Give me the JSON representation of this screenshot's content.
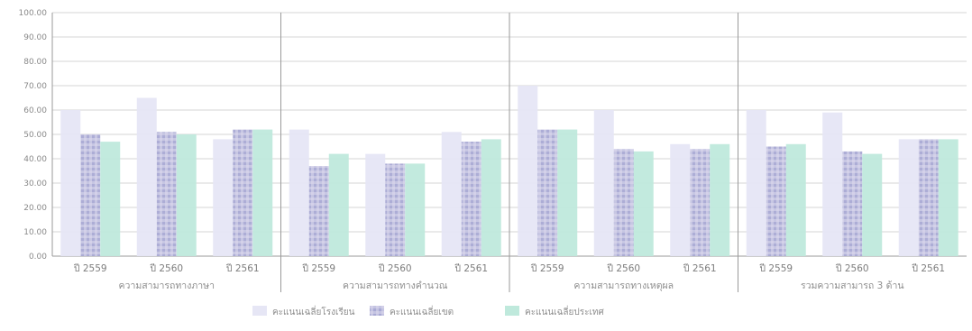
{
  "chart_data": {
    "type": "bar",
    "title": "",
    "xlabel": "",
    "ylabel": "",
    "ylim": [
      0,
      100
    ],
    "grid": true,
    "legend_position": "bottom",
    "yticks": [
      "0.00",
      "10.00",
      "20.00",
      "30.00",
      "40.00",
      "50.00",
      "60.00",
      "70.00",
      "80.00",
      "90.00",
      "100.00"
    ],
    "groups": [
      {
        "label": "ความสามารถทางภาษา",
        "categories": [
          "ปี 2559",
          "ปี 2560",
          "ปี 2561"
        ]
      },
      {
        "label": "ความสามารถทางคำนวณ",
        "categories": [
          "ปี 2559",
          "ปี 2560",
          "ปี 2561"
        ]
      },
      {
        "label": "ความสามารถทางเหตุผล",
        "categories": [
          "ปี 2559",
          "ปี 2560",
          "ปี 2561"
        ]
      },
      {
        "label": "รวมความสามารถ 3 ด้าน",
        "categories": [
          "ปี 2559",
          "ปี 2560",
          "ปี 2561"
        ]
      }
    ],
    "series": [
      {
        "name": "คะแนนเฉลี่ยโรงเรียน",
        "color": "#e6e6f5",
        "pattern": "solid",
        "values": [
          60,
          65,
          48,
          52,
          42,
          51,
          70,
          60,
          46,
          60,
          59,
          48
        ]
      },
      {
        "name": "คะแนนเฉลี่ยเขต",
        "color": "#b8b8dc",
        "pattern": "mosaic",
        "values": [
          50,
          51,
          52,
          37,
          38,
          47,
          52,
          44,
          44,
          45,
          43,
          48
        ]
      },
      {
        "name": "คะแนนเฉลี่ยประเทศ",
        "color": "#bfe9dc",
        "pattern": "solid",
        "values": [
          47,
          50,
          52,
          42,
          38,
          48,
          52,
          43,
          46,
          46,
          42,
          48
        ]
      }
    ]
  }
}
